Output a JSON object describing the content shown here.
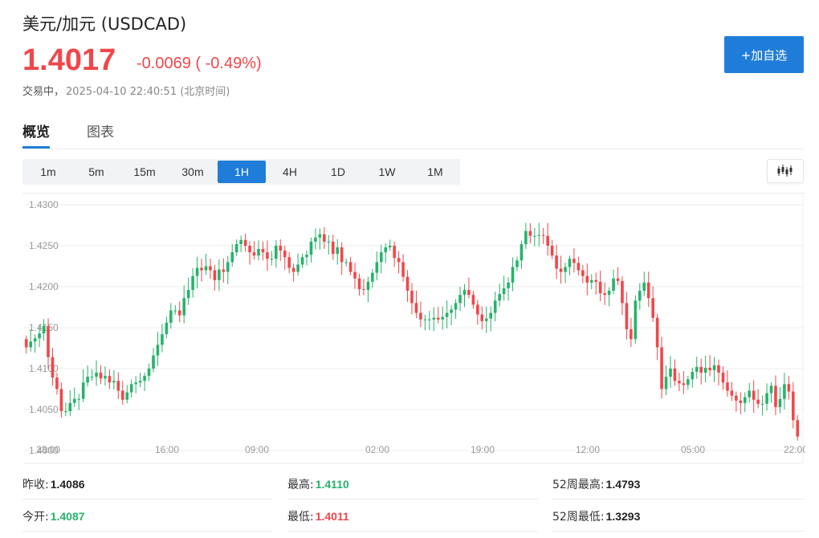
{
  "header": {
    "title": "美元/加元 (USDCAD)",
    "price": "1.4017",
    "change": "-0.0069 ( -0.49%)",
    "status": "交易中，",
    "timestamp": "2025-04-10 22:40:51 (北京时间)",
    "watch_button": "+加自选"
  },
  "colors": {
    "up": "#26b36b",
    "down": "#f0474a",
    "accent": "#1f7dd9"
  },
  "tabs": [
    {
      "label": "概览",
      "active": true
    },
    {
      "label": "图表",
      "active": false
    }
  ],
  "periods": [
    {
      "label": "1m"
    },
    {
      "label": "5m"
    },
    {
      "label": "15m"
    },
    {
      "label": "30m"
    },
    {
      "label": "1H",
      "active": true
    },
    {
      "label": "4H"
    },
    {
      "label": "1D"
    },
    {
      "label": "1W"
    },
    {
      "label": "1M"
    }
  ],
  "chart_type_icon": "candlestick-icon",
  "chart_data": {
    "type": "candlestick",
    "ylim": [
      1.4,
      1.43
    ],
    "y_ticks": [
      "1.4300",
      "1.4250",
      "1.4200",
      "1.4150",
      "1.4100",
      "1.4050",
      "1.4000"
    ],
    "x_ticks": [
      "23:00",
      "16:00",
      "09:00",
      "02:00",
      "19:00",
      "12:00",
      "05:00",
      "22:00"
    ],
    "grid": true,
    "closes": [
      1.4126,
      1.4133,
      1.4137,
      1.4143,
      1.4152,
      1.4114,
      1.4089,
      1.4075,
      1.4048,
      1.4048,
      1.4058,
      1.4063,
      1.4063,
      1.4083,
      1.409,
      1.409,
      1.4095,
      1.4088,
      1.4091,
      1.4083,
      1.4085,
      1.4073,
      1.4062,
      1.4071,
      1.4081,
      1.4083,
      1.4085,
      1.4091,
      1.41,
      1.4116,
      1.4129,
      1.4142,
      1.4156,
      1.4171,
      1.4171,
      1.4165,
      1.4186,
      1.4196,
      1.4213,
      1.4223,
      1.422,
      1.4225,
      1.422,
      1.4208,
      1.4221,
      1.4218,
      1.423,
      1.4242,
      1.4252,
      1.4257,
      1.425,
      1.4242,
      1.4238,
      1.4246,
      1.4242,
      1.4234,
      1.4234,
      1.425,
      1.4244,
      1.4236,
      1.4223,
      1.4218,
      1.4227,
      1.4236,
      1.4239,
      1.4255,
      1.426,
      1.4264,
      1.4255,
      1.4255,
      1.424,
      1.4248,
      1.423,
      1.423,
      1.4218,
      1.421,
      1.4197,
      1.4196,
      1.4206,
      1.4217,
      1.423,
      1.4242,
      1.4248,
      1.425,
      1.4235,
      1.423,
      1.4212,
      1.4195,
      1.418,
      1.4168,
      1.416,
      1.416,
      1.416,
      1.4162,
      1.416,
      1.4163,
      1.4168,
      1.4172,
      1.418,
      1.419,
      1.4196,
      1.419,
      1.4178,
      1.4166,
      1.4158,
      1.4161,
      1.4168,
      1.4183,
      1.4191,
      1.4198,
      1.4205,
      1.4224,
      1.4232,
      1.4252,
      1.4268,
      1.4262,
      1.4262,
      1.4263,
      1.4262,
      1.425,
      1.4238,
      1.4222,
      1.4218,
      1.4224,
      1.4234,
      1.4229,
      1.422,
      1.4213,
      1.4205,
      1.4208,
      1.4206,
      1.4192,
      1.419,
      1.4195,
      1.421,
      1.4207,
      1.418,
      1.4148,
      1.4136,
      1.4183,
      1.4195,
      1.4205,
      1.4186,
      1.4162,
      1.4126,
      1.4075,
      1.409,
      1.41,
      1.4085,
      1.4082,
      1.408,
      1.4087,
      1.4096,
      1.4102,
      1.4095,
      1.4101,
      1.4098,
      1.4104,
      1.4095,
      1.4083,
      1.4073,
      1.4067,
      1.4061,
      1.4058,
      1.4065,
      1.4073,
      1.4062,
      1.4057,
      1.4057,
      1.407,
      1.4079,
      1.4053,
      1.4063,
      1.4081,
      1.4072,
      1.4037,
      1.4017
    ]
  },
  "stats": [
    {
      "label": "昨收:",
      "value": "1.4086",
      "tone": "neutral"
    },
    {
      "label": "最高:",
      "value": "1.4110",
      "tone": "up"
    },
    {
      "label": "52周最高:",
      "value": "1.4793",
      "tone": "neutral"
    },
    {
      "label": "今开:",
      "value": "1.4087",
      "tone": "up"
    },
    {
      "label": "最低:",
      "value": "1.4011",
      "tone": "down"
    },
    {
      "label": "52周最低:",
      "value": "1.3293",
      "tone": "neutral"
    }
  ]
}
